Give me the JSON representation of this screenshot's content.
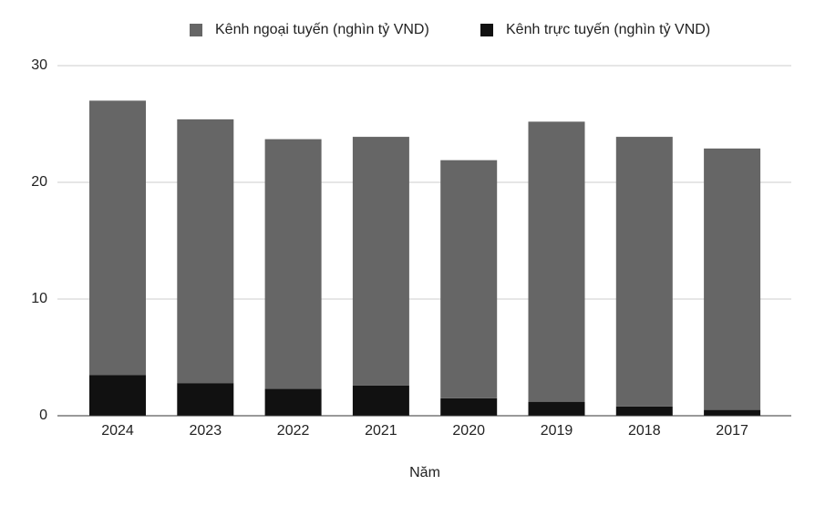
{
  "chart_data": {
    "type": "stacked-bar",
    "x_label": "Năm",
    "categories": [
      "2024",
      "2023",
      "2022",
      "2021",
      "2020",
      "2019",
      "2018",
      "2017"
    ],
    "series": [
      {
        "name": "Kênh ngoại tuyến (nghìn tỷ VND)",
        "color": "#666666",
        "values": [
          23.5,
          22.6,
          21.4,
          21.3,
          20.4,
          24.0,
          23.1,
          22.4
        ]
      },
      {
        "name": "Kênh trực tuyến (nghìn tỷ VND)",
        "color": "#111111",
        "values": [
          3.5,
          2.8,
          2.3,
          2.6,
          1.5,
          1.2,
          0.8,
          0.5
        ]
      }
    ],
    "ylim": [
      0,
      30
    ],
    "yticks": [
      0,
      10,
      20,
      30
    ],
    "grid": true,
    "legend": "top"
  }
}
